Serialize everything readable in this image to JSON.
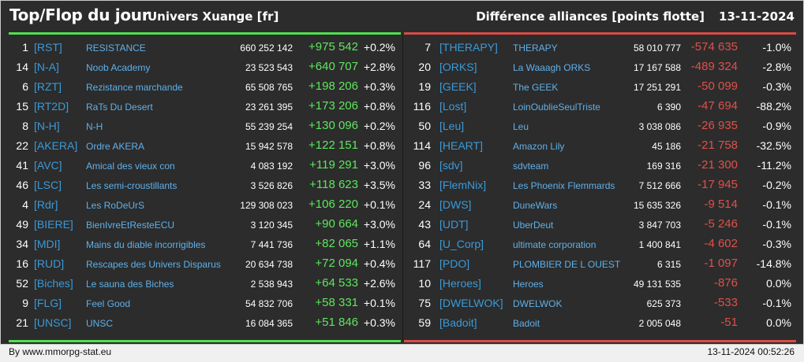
{
  "header": {
    "title": "Top/Flop du jour",
    "universe": "Univers Xuange [fr]",
    "metric": "Différence alliances [points flotte]",
    "date": "13-11-2024"
  },
  "colors": {
    "background": "#2c2c2c",
    "top_accent": "#4fe04f",
    "flop_accent": "#d94b45",
    "tag_color": "#3a9ad9",
    "name_color": "#5fb0ea",
    "positive": "#5de65d",
    "negative": "#e0504a"
  },
  "top": [
    {
      "rank": "1",
      "tag": "[RST]",
      "name": "RESISTANCE",
      "points": "660 252 142",
      "diff": "+975 542",
      "pct": "+0.2%"
    },
    {
      "rank": "14",
      "tag": "[N-A]",
      "name": "Noob Academy",
      "points": "23 523 543",
      "diff": "+640 707",
      "pct": "+2.8%"
    },
    {
      "rank": "6",
      "tag": "[RZT]",
      "name": "Rezistance marchande",
      "points": "65 508 765",
      "diff": "+198 206",
      "pct": "+0.3%"
    },
    {
      "rank": "15",
      "tag": "[RT2D]",
      "name": "RaTs Du Desert",
      "points": "23 261 395",
      "diff": "+173 206",
      "pct": "+0.8%"
    },
    {
      "rank": "8",
      "tag": "[N-H]",
      "name": "N-H",
      "points": "55 239 254",
      "diff": "+130 096",
      "pct": "+0.2%"
    },
    {
      "rank": "22",
      "tag": "[AKERA]",
      "name": "Ordre AKERA",
      "points": "15 942 578",
      "diff": "+122 151",
      "pct": "+0.8%"
    },
    {
      "rank": "41",
      "tag": "[AVC]",
      "name": "Amical des vieux con",
      "points": "4 083 192",
      "diff": "+119 291",
      "pct": "+3.0%"
    },
    {
      "rank": "46",
      "tag": "[LSC]",
      "name": "Les semi-croustillants",
      "points": "3 526 826",
      "diff": "+118 623",
      "pct": "+3.5%"
    },
    {
      "rank": "4",
      "tag": "[Rdr]",
      "name": "Les RoDeUrS",
      "points": "129 308 023",
      "diff": "+106 220",
      "pct": "+0.1%"
    },
    {
      "rank": "49",
      "tag": "[BIERE]",
      "name": "BienIvreEtResteECU",
      "points": "3 120 345",
      "diff": "+90 664",
      "pct": "+3.0%"
    },
    {
      "rank": "34",
      "tag": "[MDI]",
      "name": "Mains du diable incorrigibles",
      "points": "7 441 736",
      "diff": "+82 065",
      "pct": "+1.1%"
    },
    {
      "rank": "16",
      "tag": "[RUD]",
      "name": "Rescapes des Univers Disparus",
      "points": "20 634 738",
      "diff": "+72 094",
      "pct": "+0.4%"
    },
    {
      "rank": "52",
      "tag": "[Biches]",
      "name": "Le sauna des Biches",
      "points": "2 538 943",
      "diff": "+64 533",
      "pct": "+2.6%"
    },
    {
      "rank": "9",
      "tag": "[FLG]",
      "name": "Feel Good",
      "points": "54 832 706",
      "diff": "+58 331",
      "pct": "+0.1%"
    },
    {
      "rank": "21",
      "tag": "[UNSC]",
      "name": "UNSC",
      "points": "16 084 365",
      "diff": "+51 846",
      "pct": "+0.3%"
    }
  ],
  "flop": [
    {
      "rank": "7",
      "tag": "[THERAPY]",
      "name": "THERAPY",
      "points": "58 010 777",
      "diff": "-574 635",
      "pct": "-1.0%"
    },
    {
      "rank": "20",
      "tag": "[ORKS]",
      "name": "La Waaagh ORKS",
      "points": "17 167 588",
      "diff": "-489 324",
      "pct": "-2.8%"
    },
    {
      "rank": "19",
      "tag": "[GEEK]",
      "name": "The GEEK",
      "points": "17 251 291",
      "diff": "-50 099",
      "pct": "-0.3%"
    },
    {
      "rank": "116",
      "tag": "[Lost]",
      "name": "LoinOublieSeulTriste",
      "points": "6 390",
      "diff": "-47 694",
      "pct": "-88.2%"
    },
    {
      "rank": "50",
      "tag": "[Leu]",
      "name": "Leu",
      "points": "3 038 086",
      "diff": "-26 935",
      "pct": "-0.9%"
    },
    {
      "rank": "114",
      "tag": "[HEART]",
      "name": "Amazon Lily",
      "points": "45 186",
      "diff": "-21 758",
      "pct": "-32.5%"
    },
    {
      "rank": "96",
      "tag": "[sdv]",
      "name": "sdvteam",
      "points": "169 316",
      "diff": "-21 300",
      "pct": "-11.2%"
    },
    {
      "rank": "33",
      "tag": "[FlemNix]",
      "name": "Les Phoenix Flemmards",
      "points": "7 512 666",
      "diff": "-17 945",
      "pct": "-0.2%"
    },
    {
      "rank": "24",
      "tag": "[DWS]",
      "name": "DuneWars",
      "points": "15 635 326",
      "diff": "-9 514",
      "pct": "-0.1%"
    },
    {
      "rank": "43",
      "tag": "[UDT]",
      "name": "UberDeut",
      "points": "3 847 703",
      "diff": "-5 246",
      "pct": "-0.1%"
    },
    {
      "rank": "64",
      "tag": "[U_Corp]",
      "name": "ultimate corporation",
      "points": "1 400 841",
      "diff": "-4 602",
      "pct": "-0.3%"
    },
    {
      "rank": "117",
      "tag": "[PDO]",
      "name": "PLOMBIER DE L OUEST",
      "points": "6 315",
      "diff": "-1 097",
      "pct": "-14.8%"
    },
    {
      "rank": "10",
      "tag": "[Heroes]",
      "name": "Heroes",
      "points": "49 131 535",
      "diff": "-876",
      "pct": "0.0%"
    },
    {
      "rank": "75",
      "tag": "[DWELWOK]",
      "name": "DWELWOK",
      "points": "625 373",
      "diff": "-533",
      "pct": "-0.1%"
    },
    {
      "rank": "59",
      "tag": "[Badoit]",
      "name": "Badoit",
      "points": "2 005 048",
      "diff": "-51",
      "pct": "0.0%"
    }
  ],
  "footer": {
    "source": "By www.mmorpg-stat.eu",
    "timestamp": "13-11-2024 00:52:26"
  }
}
